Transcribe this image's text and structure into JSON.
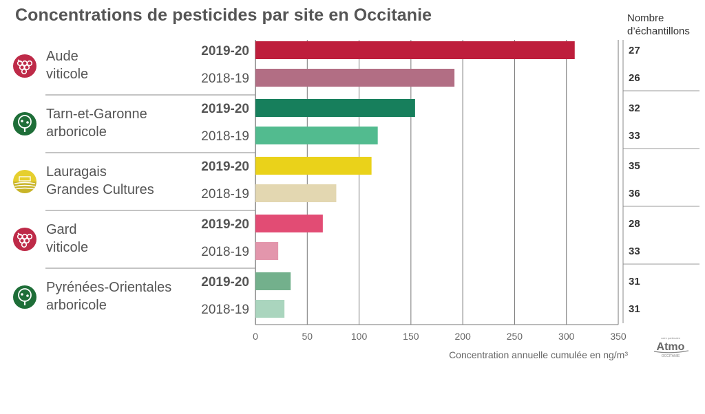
{
  "chart_data": {
    "type": "bar",
    "orientation": "horizontal",
    "title": "Concentrations de pesticides par site en Occitanie",
    "xlabel": "Concentration annuelle cumulée en ng/m³",
    "xlim": [
      0,
      350
    ],
    "xticks": [
      0,
      50,
      100,
      150,
      200,
      250,
      300,
      350
    ],
    "grid": "vertical",
    "count_header": [
      "Nombre",
      "d’échantillons"
    ],
    "sites": [
      {
        "name_lines": [
          "Aude",
          "viticole"
        ],
        "icon": "grape-icon",
        "icon_color": "#be2a48",
        "bars": [
          {
            "year": "2019-20",
            "value": 308,
            "count": "27",
            "color": "#be1e3c"
          },
          {
            "year": "2018-19",
            "value": 192,
            "count": "26",
            "color": "#b26e84"
          }
        ]
      },
      {
        "name_lines": [
          "Tarn-et-Garonne",
          "arboricole"
        ],
        "icon": "tree-icon",
        "icon_color": "#1e6e38",
        "bars": [
          {
            "year": "2019-20",
            "value": 154,
            "count": "32",
            "color": "#177f5c"
          },
          {
            "year": "2018-19",
            "value": 118,
            "count": "33",
            "color": "#52bb8f"
          }
        ]
      },
      {
        "name_lines": [
          "Lauragais",
          "Grandes Cultures"
        ],
        "icon": "field-icon",
        "icon_color": "#c8b428",
        "bars": [
          {
            "year": "2019-20",
            "value": 112,
            "count": "35",
            "color": "#ead21a"
          },
          {
            "year": "2018-19",
            "value": 78,
            "count": "36",
            "color": "#e3d7b1"
          }
        ]
      },
      {
        "name_lines": [
          "Gard",
          "viticole"
        ],
        "icon": "grape-icon",
        "icon_color": "#be2a48",
        "bars": [
          {
            "year": "2019-20",
            "value": 65,
            "count": "28",
            "color": "#e24c74"
          },
          {
            "year": "2018-19",
            "value": 22,
            "count": "33",
            "color": "#e396ac"
          }
        ]
      },
      {
        "name_lines": [
          "Pyrénées-Orientales",
          "arboricole"
        ],
        "icon": "tree-icon",
        "icon_color": "#1e6e38",
        "bars": [
          {
            "year": "2019-20",
            "value": 34,
            "count": "31",
            "color": "#73b08c"
          },
          {
            "year": "2018-19",
            "value": 28,
            "count": "31",
            "color": "#aad5be"
          }
        ]
      }
    ]
  },
  "logo": {
    "name": "Atmo",
    "region": "OCCITANIE",
    "tagline": "votre partenaire"
  }
}
